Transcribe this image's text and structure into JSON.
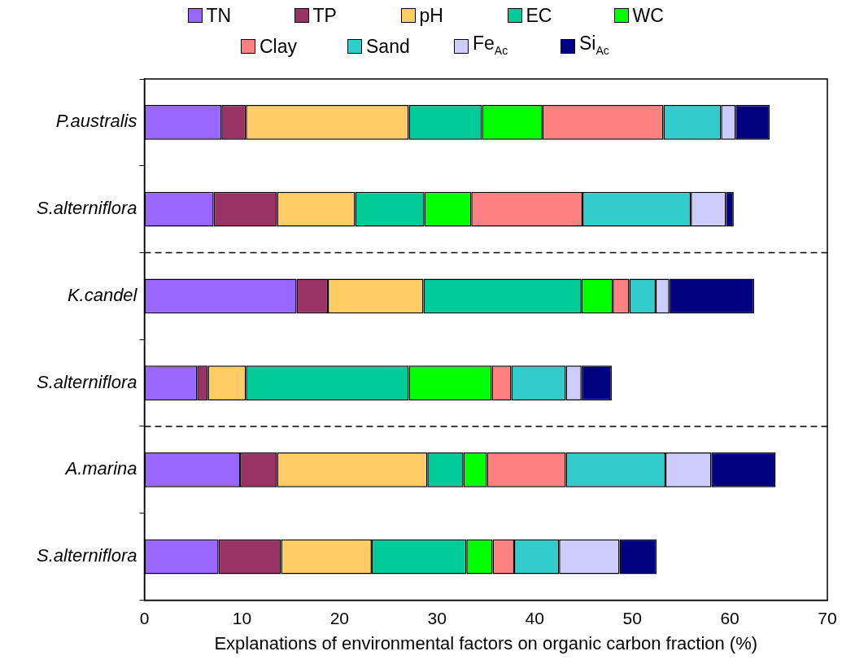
{
  "chart_data": {
    "type": "bar",
    "orientation": "horizontal",
    "stacked": true,
    "xlabel": "Explanations of environmental factors on organic carbon fraction (%)",
    "categories": [
      "P.australis",
      "S.alterniflora",
      "K.candel",
      "S.alterniflora",
      "A.marina",
      "S.alterniflora"
    ],
    "series": [
      {
        "name": "TN",
        "color": "#9966ff",
        "values": [
          7.9,
          7.1,
          15.6,
          5.4,
          9.8,
          7.6
        ]
      },
      {
        "name": "TP",
        "color": "#993366",
        "values": [
          2.5,
          6.5,
          3.2,
          1.1,
          3.8,
          6.4
        ]
      },
      {
        "name": "pH",
        "color": "#ffcc66",
        "values": [
          16.7,
          8.0,
          9.8,
          3.9,
          15.4,
          9.3
        ]
      },
      {
        "name": "EC",
        "color": "#00cc99",
        "values": [
          7.5,
          7.1,
          16.2,
          16.7,
          3.7,
          9.7
        ]
      },
      {
        "name": "WC",
        "color": "#00ff00",
        "values": [
          6.2,
          4.8,
          3.2,
          8.5,
          2.4,
          2.7
        ]
      },
      {
        "name": "Clay",
        "color": "#ff8080",
        "values": [
          12.4,
          11.4,
          1.7,
          2.0,
          8.1,
          2.2
        ]
      },
      {
        "name": "Sand",
        "color": "#33cccc",
        "values": [
          5.9,
          11.1,
          2.7,
          5.6,
          10.2,
          4.6
        ]
      },
      {
        "name": "Fe$_{Ac}$",
        "color": "#ccccff",
        "values": [
          1.5,
          3.6,
          1.4,
          1.6,
          4.7,
          6.2
        ]
      },
      {
        "name": "Si$_{Ac}$",
        "color": "#000080",
        "values": [
          3.5,
          0.8,
          8.7,
          3.1,
          6.6,
          3.8
        ]
      }
    ],
    "xlim": [
      0,
      70
    ],
    "xticks": [
      0,
      10,
      20,
      30,
      40,
      50,
      60,
      70
    ],
    "grid": false,
    "legend": "top"
  }
}
